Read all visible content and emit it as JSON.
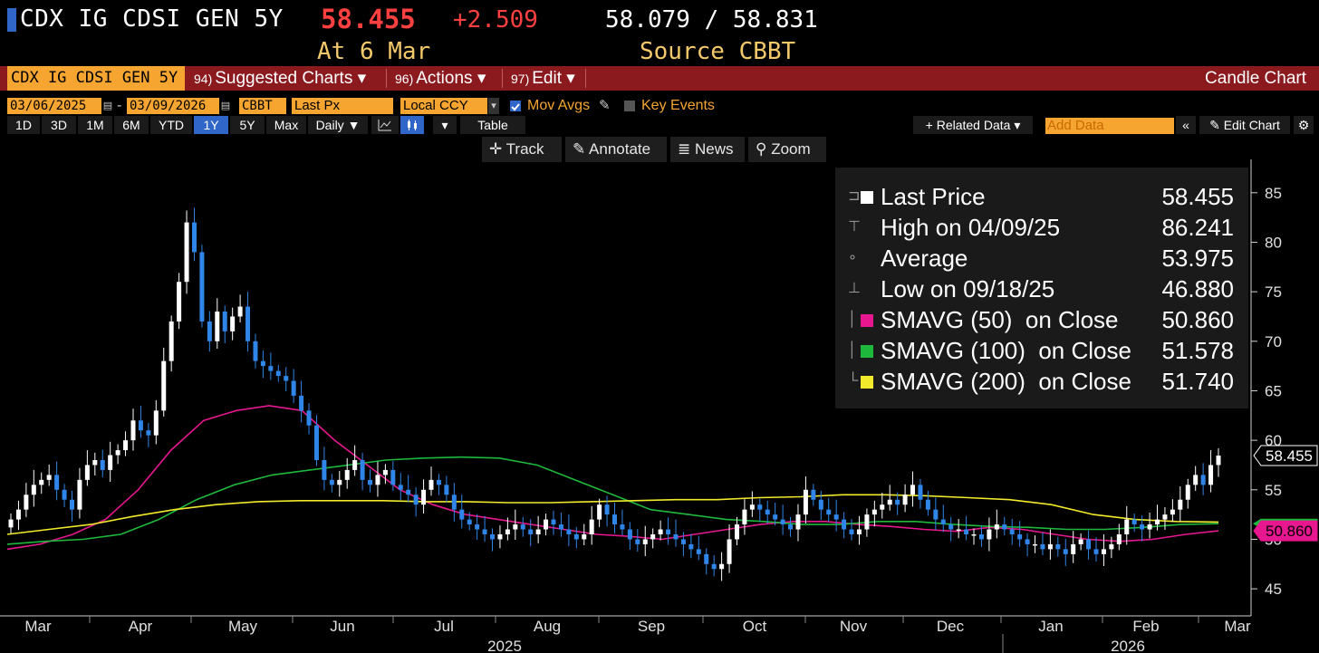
{
  "header": {
    "security": "CDX IG CDSI GEN 5Y",
    "last_price": "58.455",
    "change": "+2.509",
    "bid_ask": "58.079 / 58.831",
    "as_of": "At 6 Mar",
    "source": "Source CBBT"
  },
  "menubar": {
    "security": "CDX IG CDSI GEN 5Y",
    "items": [
      {
        "num": "94)",
        "label": "Suggested Charts ▾"
      },
      {
        "num": "96)",
        "label": "Actions ▾"
      },
      {
        "num": "97)",
        "label": "Edit ▾"
      }
    ],
    "right_label": "Candle Chart"
  },
  "controls": {
    "start_date": "03/06/2025",
    "end_date": "03/09/2026",
    "date_sep": "-",
    "source": "CBBT",
    "field": "Last Px",
    "currency": "Local CCY",
    "mov_avgs": "Mov Avgs",
    "key_events": "Key Events",
    "periods": [
      "1D",
      "3D",
      "1M",
      "6M",
      "YTD",
      "1Y",
      "5Y",
      "Max"
    ],
    "active_period": "1Y",
    "frequency": "Daily ▼",
    "table": "Table",
    "related_data": "+ Related Data ▾",
    "add_data_placeholder": "Add Data",
    "edit_chart": "Edit Chart"
  },
  "tools": {
    "track": "Track",
    "annotate": "Annotate",
    "news": "News",
    "zoom": "Zoom"
  },
  "legend": [
    {
      "name": "Last Price",
      "value": "58.455",
      "color": "#ffffff",
      "tree": "⊐"
    },
    {
      "name": "High on 04/09/25",
      "value": "86.241",
      "color": "",
      "tree": "⊤"
    },
    {
      "name": "Average",
      "value": "53.975",
      "color": "",
      "tree": "∘"
    },
    {
      "name": "Low on 09/18/25",
      "value": "46.880",
      "color": "",
      "tree": "⊥"
    },
    {
      "name": "SMAVG (50)  on Close",
      "value": "50.860",
      "color": "#e6178f",
      "tree": "│"
    },
    {
      "name": "SMAVG (100)  on Close",
      "value": "51.578",
      "color": "#1db83c",
      "tree": "│"
    },
    {
      "name": "SMAVG (200)  on Close",
      "value": "51.740",
      "color": "#f2ea2a",
      "tree": "└"
    }
  ],
  "chart_data": {
    "type": "candlestick",
    "ylim": [
      43,
      88
    ],
    "y_ticks": [
      45,
      50,
      55,
      60,
      65,
      70,
      75,
      80,
      85
    ],
    "x_ticks": [
      "Mar",
      "Apr",
      "May",
      "Jun",
      "Jul",
      "Aug",
      "Sep",
      "Oct",
      "Nov",
      "Dec",
      "Jan",
      "Feb",
      "Mar"
    ],
    "year_labels": [
      "2025",
      "2026"
    ],
    "price_tags": [
      {
        "value": 58.455,
        "label": "58.455",
        "color": "#ffffff"
      },
      {
        "value": 51.578,
        "label": "",
        "color": "#1db83c"
      },
      {
        "value": 50.86,
        "label": "50.860",
        "color": "#e6178f"
      }
    ],
    "close_series": [
      52.0,
      53.0,
      54.5,
      55.5,
      56.0,
      56.5,
      55.0,
      54.0,
      53.0,
      56.0,
      57.5,
      58.0,
      57.0,
      58.5,
      59.0,
      60.0,
      62.0,
      61.0,
      60.5,
      63.0,
      68.0,
      72.0,
      76.0,
      82.0,
      79.0,
      72.0,
      70.0,
      73.0,
      71.0,
      72.5,
      73.5,
      70.0,
      68.0,
      67.5,
      67.0,
      66.5,
      66.0,
      64.5,
      63.0,
      61.5,
      58.0,
      56.0,
      55.5,
      56.0,
      57.0,
      58.0,
      56.0,
      55.5,
      56.5,
      57.0,
      55.5,
      55.0,
      54.5,
      53.5,
      55.0,
      56.0,
      55.5,
      54.5,
      53.0,
      52.0,
      51.5,
      51.0,
      50.5,
      50.0,
      50.5,
      51.0,
      51.5,
      51.0,
      50.5,
      51.0,
      52.0,
      51.5,
      51.0,
      50.5,
      50.0,
      50.5,
      52.0,
      53.5,
      52.5,
      51.5,
      51.0,
      50.0,
      49.5,
      50.0,
      50.5,
      51.0,
      50.5,
      50.0,
      49.5,
      49.0,
      48.5,
      47.5,
      47.0,
      47.5,
      50.0,
      51.5,
      53.0,
      53.5,
      53.0,
      52.5,
      52.0,
      51.5,
      51.0,
      52.5,
      55.0,
      54.0,
      53.0,
      52.5,
      52.0,
      51.0,
      50.5,
      51.0,
      52.5,
      53.0,
      53.5,
      54.0,
      53.5,
      54.5,
      55.5,
      54.0,
      53.0,
      52.0,
      51.5,
      51.0,
      51.0,
      50.5,
      50.5,
      50.0,
      51.0,
      51.5,
      51.0,
      50.5,
      50.0,
      49.5,
      49.5,
      49.0,
      49.5,
      49.0,
      48.5,
      49.5,
      50.0,
      49.0,
      48.5,
      49.0,
      49.5,
      50.5,
      52.0,
      51.5,
      51.0,
      51.5,
      52.0,
      52.5,
      53.0,
      54.0,
      55.5,
      56.5,
      55.5,
      57.5,
      58.455
    ],
    "series": [
      {
        "name": "SMAVG (50)",
        "color": "#e6178f",
        "values": [
          49.0,
          49.5,
          50.5,
          52.0,
          55.0,
          59.0,
          62.0,
          63.0,
          63.5,
          63.0,
          60.0,
          57.5,
          55.0,
          53.5,
          52.5,
          52.0,
          51.5,
          51.0,
          50.5,
          50.3,
          50.0,
          50.5,
          51.0,
          51.5,
          51.8,
          51.8,
          51.5,
          51.3,
          51.0,
          50.8,
          51.2,
          51.0,
          50.5,
          50.0,
          49.8,
          50.0,
          50.5,
          50.86
        ]
      },
      {
        "name": "SMAVG (100)",
        "color": "#1db83c",
        "values": [
          49.5,
          49.8,
          50.0,
          50.5,
          52.0,
          54.0,
          55.5,
          56.5,
          57.0,
          57.5,
          58.0,
          58.2,
          58.3,
          58.2,
          57.5,
          56.0,
          54.5,
          53.0,
          52.5,
          52.0,
          51.8,
          51.5,
          51.5,
          51.8,
          51.8,
          51.5,
          51.3,
          51.2,
          51.0,
          51.0,
          51.2,
          51.5,
          51.578
        ]
      },
      {
        "name": "SMAVG (200)",
        "color": "#f2ea2a",
        "values": [
          50.5,
          51.0,
          51.5,
          52.3,
          53.0,
          53.5,
          53.8,
          53.9,
          53.9,
          53.9,
          53.8,
          53.8,
          53.7,
          53.7,
          53.8,
          53.9,
          54.0,
          54.0,
          54.2,
          54.3,
          54.5,
          54.5,
          54.4,
          54.2,
          54.0,
          53.5,
          52.5,
          52.0,
          51.8,
          51.74
        ]
      }
    ]
  }
}
